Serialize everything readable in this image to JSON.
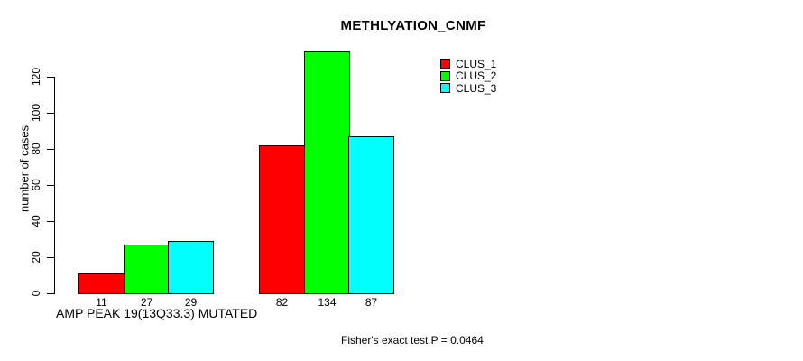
{
  "chart_data": {
    "type": "bar",
    "title": "METHLYATION_CNMF",
    "ylabel": "number of cases",
    "xlabel": "AMP PEAK 19(13Q33.3) MUTATED",
    "annotation": "Fisher's exact test P = 0.0464",
    "yticks": [
      0,
      20,
      40,
      60,
      80,
      100,
      120
    ],
    "ylim": [
      0,
      140
    ],
    "grid": false,
    "legend_position": "top-right-inside",
    "groups": 2,
    "value_labels_shown": true,
    "series": [
      {
        "name": "CLUS_1",
        "color": "#ff0000",
        "values": [
          11,
          82
        ]
      },
      {
        "name": "CLUS_2",
        "color": "#00ff00",
        "values": [
          27,
          134
        ]
      },
      {
        "name": "CLUS_3",
        "color": "#00ffff",
        "values": [
          29,
          87
        ]
      }
    ]
  }
}
